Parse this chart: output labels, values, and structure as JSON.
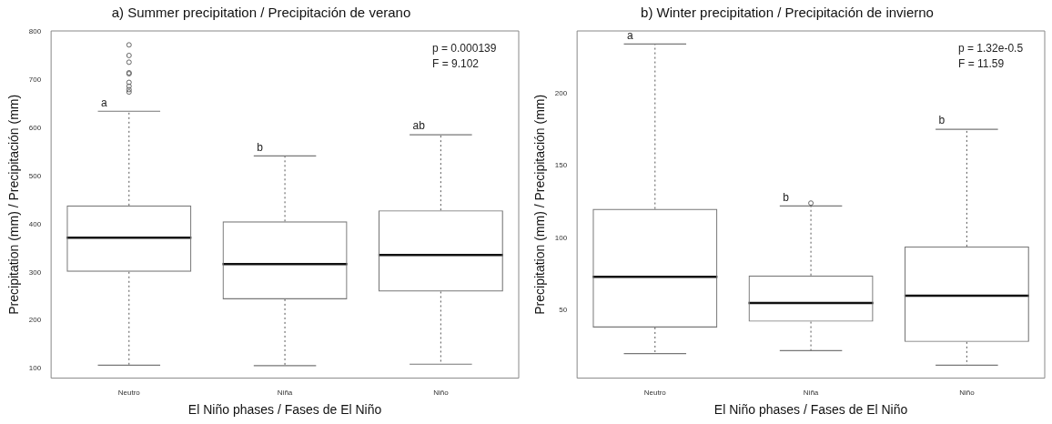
{
  "chart_data": [
    {
      "type": "box",
      "title": "a) Summer precipitation / Precipitación de verano",
      "xlabel": "El Niño phases / Fases de El Niño",
      "ylabel": "Precipitation (mm) / Precipitación (mm)",
      "categories": [
        "Neutro",
        "Niña",
        "Niño"
      ],
      "boxes": [
        {
          "low": 107,
          "q1": 301,
          "median": 372,
          "q3": 439,
          "high": 635,
          "outliers": [
            773,
            751,
            737,
            715,
            713,
            695,
            687,
            680,
            675
          ]
        },
        {
          "low": 106,
          "q1": 244,
          "median": 317,
          "q3": 406,
          "high": 542
        },
        {
          "low": 109,
          "q1": 260,
          "median": 336,
          "q3": 429,
          "high": 586
        }
      ],
      "ylim": [
        80,
        802
      ],
      "yticks": [
        100,
        200,
        300,
        400,
        500,
        600,
        700,
        800
      ],
      "annotations": [
        "a",
        "b",
        "ab",
        "p = 0.000139",
        "F = 9.102"
      ]
    },
    {
      "type": "box",
      "title": "b) Winter precipitation / Precipitación de invierno",
      "xlabel": "El Niño phases / Fases de El Niño",
      "ylabel": "Precipitation (mm) / Precipitación (mm)",
      "categories": [
        "Neutro",
        "Niña",
        "Niño"
      ],
      "boxes": [
        {
          "low": 20,
          "q1": 38,
          "median": 73,
          "q3": 120,
          "high": 234
        },
        {
          "low": 22,
          "q1": 42,
          "median": 55,
          "q3": 74,
          "high": 122,
          "outliers": [
            124
          ]
        },
        {
          "low": 12,
          "q1": 28,
          "median": 60,
          "q3": 94,
          "high": 175
        }
      ],
      "ylim": [
        3,
        243
      ],
      "yticks": [
        50,
        100,
        150,
        200
      ],
      "annotations": [
        "a",
        "b",
        "b",
        "p = 1.32e-0.5",
        "F = 11.59"
      ]
    }
  ]
}
